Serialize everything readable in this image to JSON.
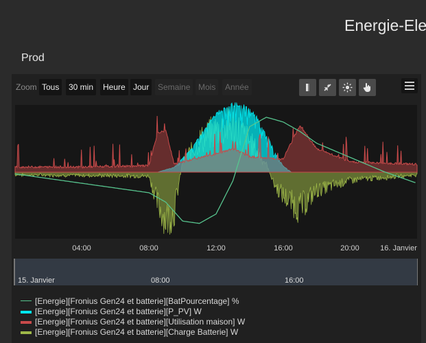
{
  "header": {
    "title": "Energie-Ele"
  },
  "section": {
    "title": "Prod"
  },
  "toolbar": {
    "zoom_label": "Zoom",
    "ranges": [
      {
        "label": "Tous",
        "enabled": true
      },
      {
        "label": "30 min",
        "enabled": true
      },
      {
        "label": "Heure",
        "enabled": true
      },
      {
        "label": "Jour",
        "enabled": true
      },
      {
        "label": "Semaine",
        "enabled": false
      },
      {
        "label": "Mois",
        "enabled": false
      },
      {
        "label": "Année",
        "enabled": false
      }
    ],
    "tools": [
      "toggle-panel-icon",
      "collapse-icon",
      "brightness-icon",
      "pointer-hand-icon"
    ],
    "menu_icon": "hamburger-menu-icon"
  },
  "chart_data": {
    "type": "line",
    "x_unit": "time",
    "x_ticks": [
      "04:00",
      "08:00",
      "12:00",
      "16:00",
      "20:00",
      "16. Janvier"
    ],
    "x_range": [
      "15. Janvier 00:00",
      "16. Janvier 00:00"
    ],
    "grid": false,
    "legend_position": "bottom",
    "series": [
      {
        "name": "[Energie][Fronius Gen24 et batterie][BatPourcentage] %",
        "type": "line",
        "color": "#57c48e",
        "x": [
          0,
          2,
          4,
          6,
          8,
          9,
          10,
          11,
          12,
          13,
          14,
          15,
          16,
          17,
          18,
          20,
          22,
          24
        ],
        "y": [
          48,
          44,
          40,
          36,
          32,
          24,
          8,
          6,
          14,
          42,
          88,
          96,
          92,
          84,
          74,
          62,
          50,
          40
        ]
      },
      {
        "name": "[Energie][Fronius Gen24 et batterie][P_PV] W",
        "type": "area",
        "color": "#00e5ee",
        "x": [
          8.5,
          9.5,
          10.5,
          11,
          11.5,
          12,
          12.5,
          13,
          13.5,
          14,
          14.5,
          15,
          15.5,
          16,
          16.5
        ],
        "y": [
          0,
          200,
          900,
          1400,
          1900,
          2300,
          2550,
          2700,
          2650,
          2500,
          2100,
          1500,
          800,
          250,
          0
        ]
      },
      {
        "name": "[Energie][Fronius Gen24 et batterie][Utilisation maison] W",
        "type": "line",
        "color": "#c84a4a",
        "x": [
          0,
          4,
          8,
          8.5,
          9,
          9.5,
          10,
          12,
          13,
          14,
          16,
          17,
          18,
          20,
          24
        ],
        "y": [
          200,
          200,
          250,
          1500,
          1600,
          300,
          400,
          700,
          900,
          600,
          500,
          1800,
          900,
          400,
          300
        ]
      },
      {
        "name": "[Energie][Fronius Gen24 et batterie][Charge Batterie] W",
        "type": "area",
        "color": "#9eb848",
        "x": [
          0,
          8,
          8.5,
          9,
          9.5,
          10,
          11,
          12,
          13,
          14,
          15,
          15.5,
          16,
          17,
          18,
          20,
          24
        ],
        "y": [
          -100,
          -150,
          -1200,
          -1800,
          -1500,
          400,
          1200,
          1600,
          1800,
          1200,
          300,
          -500,
          -900,
          -1400,
          -700,
          -300,
          -100
        ]
      }
    ]
  },
  "navigator": {
    "labels": [
      "15. Janvier",
      "08:00",
      "16:00"
    ]
  },
  "legend": {
    "items": [
      {
        "label": "[Energie][Fronius Gen24 et batterie][BatPourcentage] %",
        "color": "#57c48e"
      },
      {
        "label": "[Energie][Fronius Gen24 et batterie][P_PV] W",
        "color": "#00e5ee"
      },
      {
        "label": "[Energie][Fronius Gen24 et batterie][Utilisation maison] W",
        "color": "#c84a4a"
      },
      {
        "label": "[Energie][Fronius Gen24 et batterie][Charge Batterie] W",
        "color": "#9eb848"
      }
    ]
  }
}
